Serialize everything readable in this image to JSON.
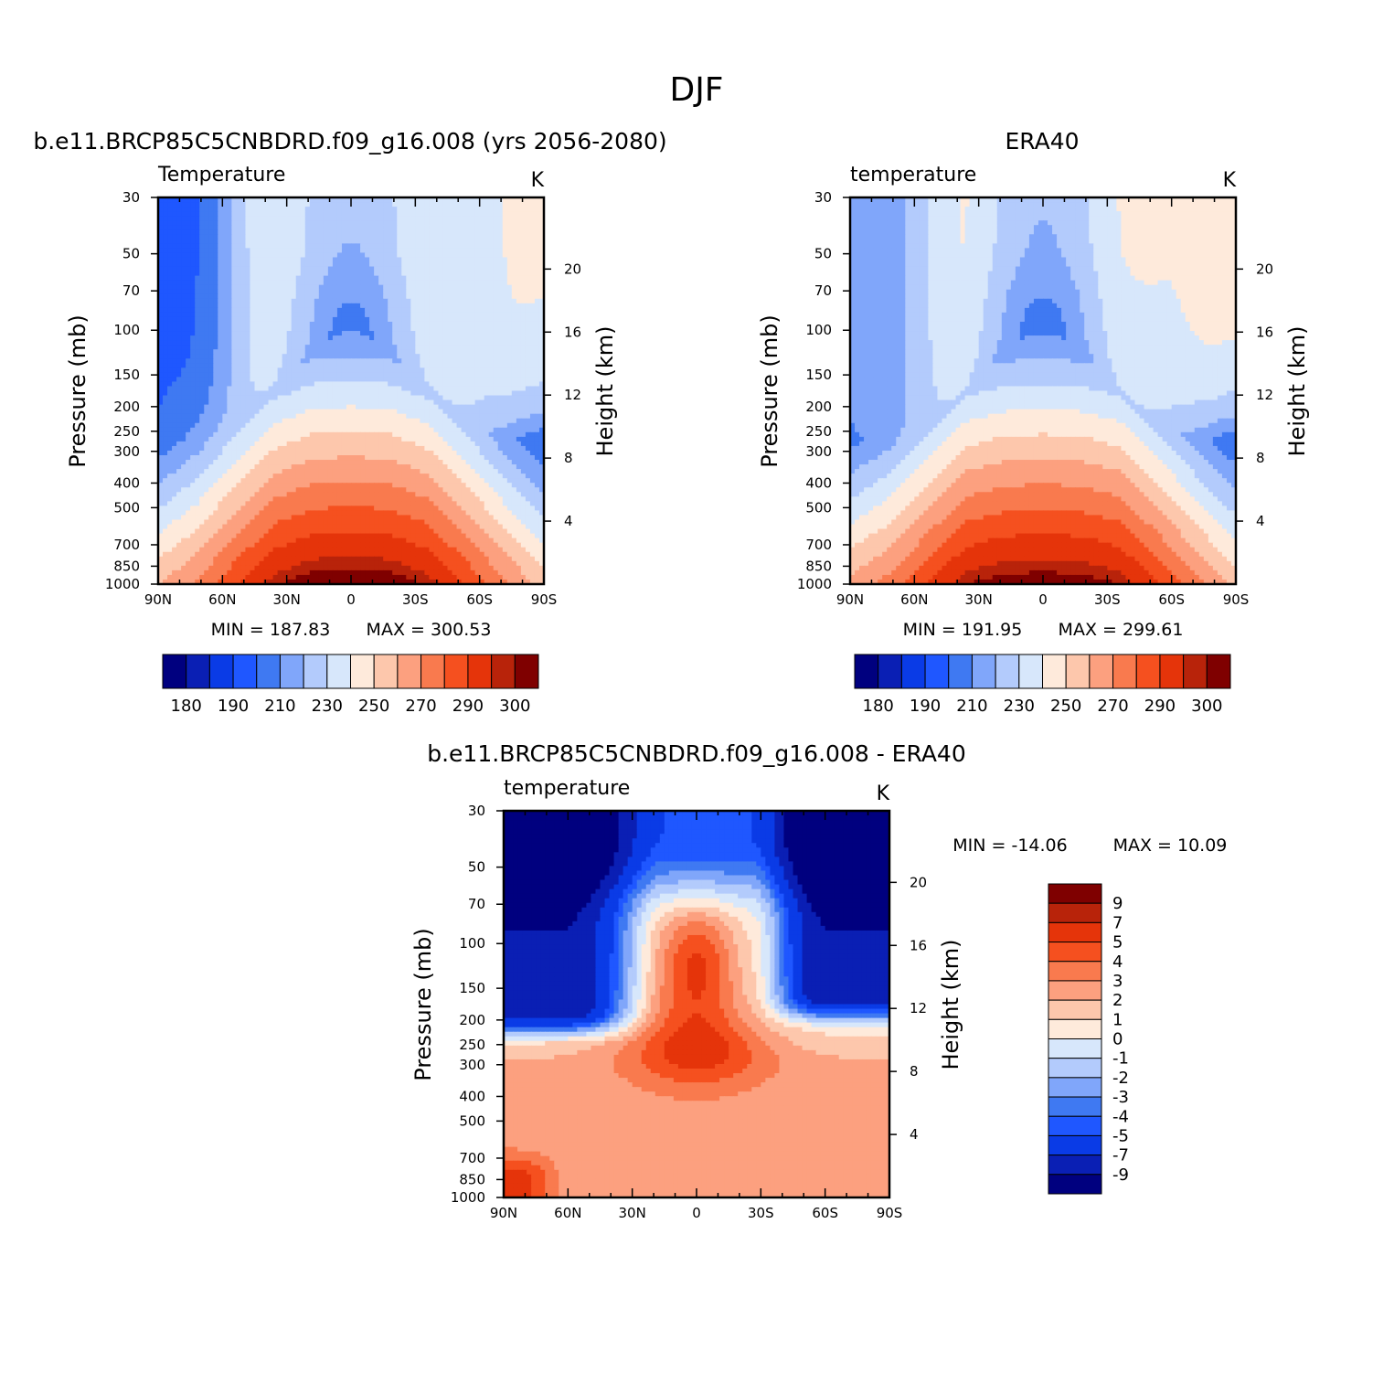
{
  "figure": {
    "title": "DJF"
  },
  "colors": {
    "temperature_levels": [
      "#00007f",
      "#0a1fb4",
      "#0a3be6",
      "#1f57ff",
      "#3f79f2",
      "#80a6fa",
      "#b3cbfc",
      "#d7e7fb",
      "#feeadb",
      "#fdc7ac",
      "#fca07f",
      "#f97a4e",
      "#f5501f",
      "#e5340a",
      "#b8230a",
      "#7f0000"
    ],
    "difference_levels": [
      "#00007f",
      "#0a1fb4",
      "#0a3be6",
      "#1f57ff",
      "#3f79f2",
      "#80a6fa",
      "#b3cbfc",
      "#d7e7fb",
      "#feeadb",
      "#fdc7ac",
      "#fca07f",
      "#f97a4e",
      "#f5501f",
      "#e5340a",
      "#b8230a",
      "#7f0000"
    ]
  },
  "chart_data": [
    {
      "type": "heatmap",
      "id": "model",
      "title": "b.e11.BRCP85C5CNBDRD.f09_g16.008 (yrs 2056-2080)",
      "left_label": "Temperature",
      "units": "K",
      "ylabel": "Pressure (mb)",
      "ylabel_right": "Height (km)",
      "x_ticks": [
        "90N",
        "60N",
        "30N",
        "0",
        "30S",
        "60S",
        "90S"
      ],
      "y_ticks": [
        30,
        50,
        70,
        100,
        150,
        200,
        250,
        300,
        400,
        500,
        700,
        850,
        1000
      ],
      "y_ticks_right": [
        20,
        16,
        12,
        8,
        4
      ],
      "ylim": [
        1000,
        30
      ],
      "log_pressure": true,
      "min_label": "MIN = 187.83",
      "max_label": "MAX = 300.53",
      "colorbar_ticks": [
        "180",
        "190",
        "210",
        "230",
        "250",
        "270",
        "290",
        "300"
      ],
      "colorbar_orientation": "horizontal",
      "levels": [
        175,
        180,
        185,
        190,
        200,
        210,
        220,
        230,
        240,
        250,
        260,
        270,
        280,
        290,
        295,
        300
      ],
      "field": {
        "surface_temp": [
          246,
          262,
          279,
          294,
          300,
          301,
          300,
          294,
          279,
          262,
          250
        ],
        "tropopause_min": 191,
        "polar_strat_left": 187,
        "polar_strat_right": 232
      }
    },
    {
      "type": "heatmap",
      "id": "obs",
      "title": "ERA40",
      "left_label": "temperature",
      "units": "K",
      "ylabel": "Pressure (mb)",
      "ylabel_right": "Height (km)",
      "x_ticks": [
        "90N",
        "60N",
        "30N",
        "0",
        "30S",
        "60S",
        "90S"
      ],
      "y_ticks": [
        30,
        50,
        70,
        100,
        150,
        200,
        250,
        300,
        400,
        500,
        700,
        850,
        1000
      ],
      "y_ticks_right": [
        20,
        16,
        12,
        8,
        4
      ],
      "ylim": [
        1000,
        30
      ],
      "log_pressure": true,
      "min_label": "MIN = 191.95",
      "max_label": "MAX = 299.61",
      "colorbar_ticks": [
        "180",
        "190",
        "210",
        "230",
        "250",
        "270",
        "290",
        "300"
      ],
      "colorbar_orientation": "horizontal",
      "levels": [
        175,
        180,
        185,
        190,
        200,
        210,
        220,
        230,
        240,
        250,
        260,
        270,
        280,
        290,
        295,
        300
      ],
      "field": {
        "surface_temp": [
          247,
          263,
          280,
          295,
          299,
          300,
          299,
          295,
          280,
          264,
          254
        ],
        "tropopause_min": 193,
        "polar_strat_left": 205,
        "polar_strat_right": 235
      }
    },
    {
      "type": "heatmap",
      "id": "diff",
      "title": "b.e11.BRCP85C5CNBDRD.f09_g16.008 - ERA40",
      "left_label": "temperature",
      "units": "K",
      "ylabel": "Pressure (mb)",
      "ylabel_right": "Height (km)",
      "x_ticks": [
        "90N",
        "60N",
        "30N",
        "0",
        "30S",
        "60S",
        "90S"
      ],
      "y_ticks": [
        30,
        50,
        70,
        100,
        150,
        200,
        250,
        300,
        400,
        500,
        700,
        850,
        1000
      ],
      "y_ticks_right": [
        20,
        16,
        12,
        8,
        4
      ],
      "ylim": [
        1000,
        30
      ],
      "log_pressure": true,
      "min_label": "MIN = -14.06",
      "max_label": "MAX =   10.09",
      "colorbar_ticks": [
        "9",
        "7",
        "5",
        "4",
        "3",
        "2",
        "1",
        "0",
        "-1",
        "-2",
        "-3",
        "-4",
        "-5",
        "-7",
        "-9"
      ],
      "colorbar_orientation": "vertical",
      "levels": [
        -9,
        -7,
        -5,
        -4,
        -3,
        -2,
        -1,
        0,
        1,
        2,
        3,
        4,
        5,
        7,
        9
      ]
    }
  ]
}
